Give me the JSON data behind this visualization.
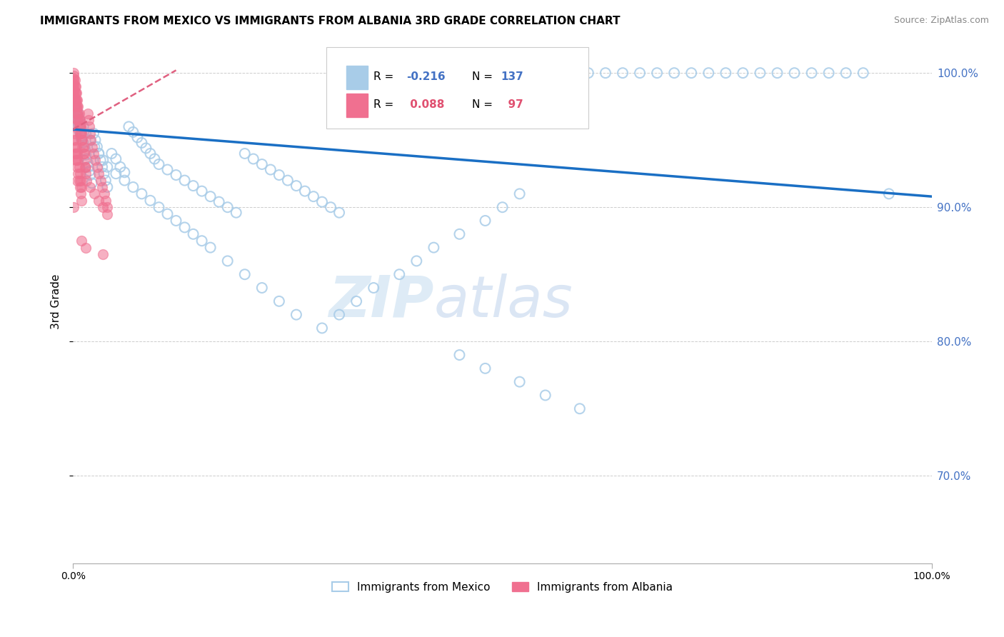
{
  "title": "IMMIGRANTS FROM MEXICO VS IMMIGRANTS FROM ALBANIA 3RD GRADE CORRELATION CHART",
  "source": "Source: ZipAtlas.com",
  "ylabel": "3rd Grade",
  "R_mexico": -0.216,
  "N_mexico": 137,
  "R_albania": 0.088,
  "N_albania": 97,
  "scatter_mexico_color": "#a8cce8",
  "scatter_albania_color": "#f07090",
  "trendline_mexico_color": "#1a6fc4",
  "trendline_albania_color": "#e06080",
  "background_color": "#ffffff",
  "watermark_zip": "ZIP",
  "watermark_atlas": "atlas",
  "xlim": [
    0.0,
    1.0
  ],
  "ylim": [
    0.635,
    1.025
  ],
  "yticks_right": [
    0.7,
    0.8,
    0.9,
    1.0
  ],
  "trendline_mexico_x0": 0.0,
  "trendline_mexico_y0": 0.958,
  "trendline_mexico_x1": 1.0,
  "trendline_mexico_y1": 0.908,
  "trendline_albania_x0": 0.0,
  "trendline_albania_y0": 0.958,
  "trendline_albania_x1": 0.12,
  "trendline_albania_y1": 1.002,
  "mexico_x": [
    0.001,
    0.002,
    0.002,
    0.003,
    0.003,
    0.003,
    0.004,
    0.004,
    0.005,
    0.005,
    0.005,
    0.006,
    0.006,
    0.007,
    0.007,
    0.008,
    0.008,
    0.009,
    0.009,
    0.01,
    0.01,
    0.011,
    0.012,
    0.013,
    0.014,
    0.015,
    0.016,
    0.017,
    0.018,
    0.019,
    0.02,
    0.022,
    0.024,
    0.026,
    0.028,
    0.03,
    0.032,
    0.034,
    0.036,
    0.038,
    0.04,
    0.045,
    0.05,
    0.055,
    0.06,
    0.065,
    0.07,
    0.075,
    0.08,
    0.085,
    0.09,
    0.095,
    0.1,
    0.11,
    0.12,
    0.13,
    0.14,
    0.15,
    0.16,
    0.17,
    0.18,
    0.19,
    0.2,
    0.21,
    0.22,
    0.23,
    0.24,
    0.25,
    0.26,
    0.27,
    0.28,
    0.29,
    0.3,
    0.31,
    0.005,
    0.008,
    0.012,
    0.015,
    0.02,
    0.025,
    0.03,
    0.035,
    0.04,
    0.05,
    0.06,
    0.07,
    0.08,
    0.09,
    0.1,
    0.11,
    0.12,
    0.13,
    0.14,
    0.15,
    0.16,
    0.18,
    0.2,
    0.22,
    0.24,
    0.26,
    0.54,
    0.56,
    0.58,
    0.6,
    0.62,
    0.64,
    0.66,
    0.68,
    0.7,
    0.72,
    0.74,
    0.76,
    0.78,
    0.8,
    0.82,
    0.84,
    0.86,
    0.88,
    0.9,
    0.92,
    0.95,
    0.38,
    0.4,
    0.42,
    0.45,
    0.48,
    0.5,
    0.52,
    0.35,
    0.33,
    0.31,
    0.29,
    0.45,
    0.48,
    0.52,
    0.55,
    0.59
  ],
  "mexico_y": [
    0.98,
    0.975,
    0.972,
    0.978,
    0.97,
    0.965,
    0.974,
    0.968,
    0.972,
    0.966,
    0.96,
    0.968,
    0.962,
    0.965,
    0.958,
    0.962,
    0.956,
    0.959,
    0.953,
    0.956,
    0.95,
    0.953,
    0.948,
    0.945,
    0.942,
    0.939,
    0.936,
    0.933,
    0.93,
    0.927,
    0.924,
    0.918,
    0.955,
    0.95,
    0.945,
    0.94,
    0.935,
    0.93,
    0.925,
    0.92,
    0.915,
    0.94,
    0.936,
    0.93,
    0.926,
    0.96,
    0.956,
    0.952,
    0.948,
    0.944,
    0.94,
    0.936,
    0.932,
    0.928,
    0.924,
    0.92,
    0.916,
    0.912,
    0.908,
    0.904,
    0.9,
    0.896,
    0.94,
    0.936,
    0.932,
    0.928,
    0.924,
    0.92,
    0.916,
    0.912,
    0.908,
    0.904,
    0.9,
    0.896,
    0.97,
    0.965,
    0.96,
    0.955,
    0.95,
    0.945,
    0.94,
    0.935,
    0.93,
    0.925,
    0.92,
    0.915,
    0.91,
    0.905,
    0.9,
    0.895,
    0.89,
    0.885,
    0.88,
    0.875,
    0.87,
    0.86,
    0.85,
    0.84,
    0.83,
    0.82,
    1.0,
    1.0,
    1.0,
    1.0,
    1.0,
    1.0,
    1.0,
    1.0,
    1.0,
    1.0,
    1.0,
    1.0,
    1.0,
    1.0,
    1.0,
    1.0,
    1.0,
    1.0,
    1.0,
    1.0,
    0.91,
    0.85,
    0.86,
    0.87,
    0.88,
    0.89,
    0.9,
    0.91,
    0.84,
    0.83,
    0.82,
    0.81,
    0.79,
    0.78,
    0.77,
    0.76,
    0.75
  ],
  "albania_x": [
    0.001,
    0.001,
    0.001,
    0.001,
    0.001,
    0.001,
    0.001,
    0.001,
    0.001,
    0.001,
    0.001,
    0.002,
    0.002,
    0.002,
    0.002,
    0.002,
    0.003,
    0.003,
    0.003,
    0.003,
    0.004,
    0.004,
    0.004,
    0.004,
    0.005,
    0.005,
    0.005,
    0.005,
    0.006,
    0.006,
    0.006,
    0.007,
    0.007,
    0.007,
    0.008,
    0.008,
    0.008,
    0.009,
    0.009,
    0.01,
    0.01,
    0.011,
    0.011,
    0.012,
    0.012,
    0.013,
    0.013,
    0.014,
    0.015,
    0.015,
    0.016,
    0.017,
    0.018,
    0.019,
    0.02,
    0.021,
    0.022,
    0.024,
    0.026,
    0.028,
    0.03,
    0.032,
    0.034,
    0.036,
    0.038,
    0.04,
    0.001,
    0.002,
    0.003,
    0.004,
    0.005,
    0.006,
    0.007,
    0.008,
    0.009,
    0.01,
    0.001,
    0.002,
    0.003,
    0.004,
    0.005,
    0.006,
    0.007,
    0.008,
    0.009,
    0.01,
    0.001,
    0.002,
    0.003,
    0.04,
    0.035,
    0.03,
    0.025,
    0.02,
    0.015,
    0.01,
    0.005
  ],
  "albania_y": [
    1.0,
    0.998,
    0.996,
    0.994,
    0.992,
    0.99,
    0.988,
    0.986,
    0.984,
    0.982,
    0.98,
    0.995,
    0.99,
    0.985,
    0.98,
    0.975,
    0.99,
    0.985,
    0.98,
    0.975,
    0.985,
    0.98,
    0.975,
    0.97,
    0.98,
    0.975,
    0.97,
    0.965,
    0.975,
    0.97,
    0.965,
    0.97,
    0.965,
    0.96,
    0.965,
    0.96,
    0.955,
    0.96,
    0.955,
    0.955,
    0.95,
    0.95,
    0.945,
    0.945,
    0.94,
    0.94,
    0.935,
    0.93,
    0.93,
    0.925,
    0.92,
    0.97,
    0.965,
    0.96,
    0.955,
    0.95,
    0.945,
    0.94,
    0.935,
    0.93,
    0.925,
    0.92,
    0.915,
    0.91,
    0.905,
    0.9,
    0.96,
    0.955,
    0.95,
    0.945,
    0.94,
    0.935,
    0.93,
    0.925,
    0.92,
    0.915,
    0.95,
    0.945,
    0.94,
    0.935,
    0.93,
    0.925,
    0.92,
    0.915,
    0.91,
    0.905,
    0.9,
    0.94,
    0.935,
    0.895,
    0.9,
    0.905,
    0.91,
    0.915,
    0.87,
    0.875,
    0.92
  ],
  "albania_outlier_x": [
    0.035
  ],
  "albania_outlier_y": [
    0.865
  ]
}
